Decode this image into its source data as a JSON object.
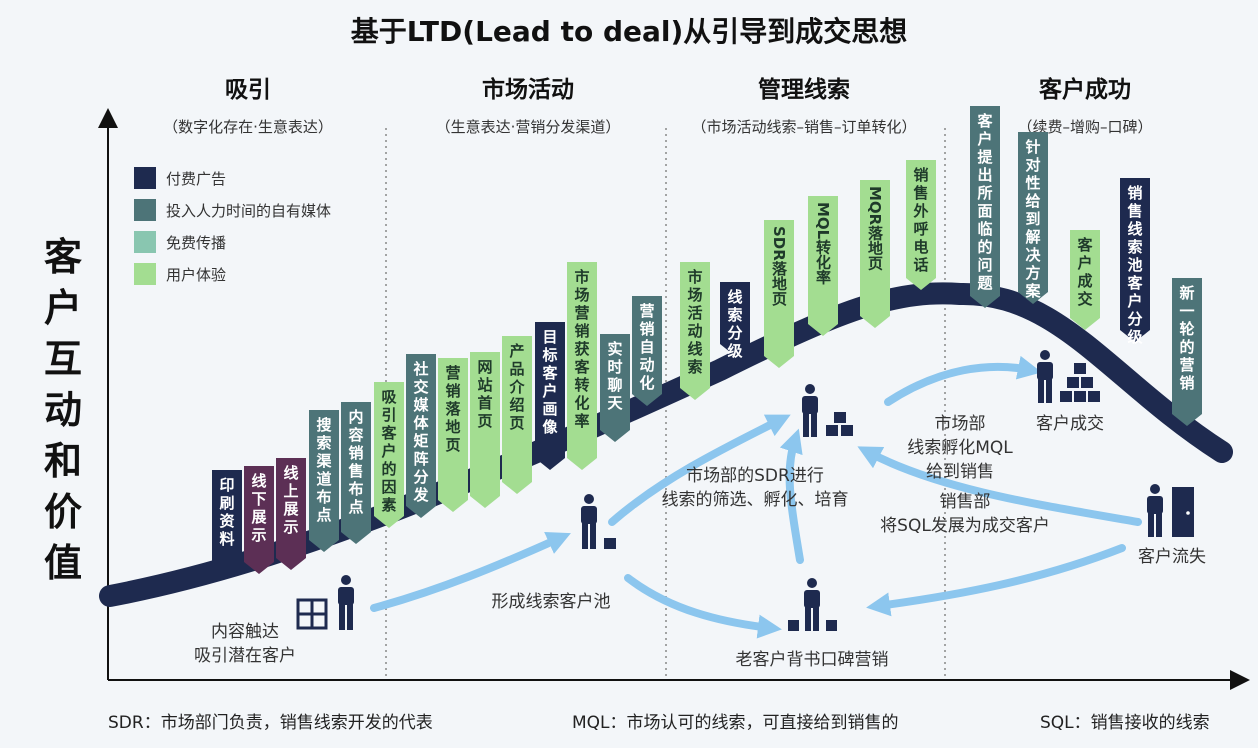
{
  "title": "基于LTD(Lead to deal)从引导到成交思想",
  "y_axis_label": "客户互动和价值",
  "stages": [
    {
      "name": "吸引",
      "sub": "（数字化存在·生意表达）"
    },
    {
      "name": "市场活动",
      "sub": "（生意表达·营销分发渠道）"
    },
    {
      "name": "管理线索",
      "sub": "（市场活动线索–销售–订单转化）"
    },
    {
      "name": "客户成功",
      "sub": "（续费–增购–口碑）"
    }
  ],
  "legend": [
    {
      "label": "付费广告",
      "color": "#1e2a4f"
    },
    {
      "label": "投入人力时间的自有媒体",
      "color": "#4d7478"
    },
    {
      "label": "免费传播",
      "color": "#89c6b0"
    },
    {
      "label": "用户体验",
      "color": "#a3dd91"
    }
  ],
  "tags": [
    {
      "text": "印刷资料",
      "category": "付费广告"
    },
    {
      "text": "线下展示",
      "category": "付费广告",
      "accent": "#5c2f55"
    },
    {
      "text": "线上展示",
      "category": "付费广告",
      "accent": "#5c2f55"
    },
    {
      "text": "搜索渠道布点",
      "category": "投入人力时间的自有媒体"
    },
    {
      "text": "内容销售布点",
      "category": "投入人力时间的自有媒体"
    },
    {
      "text": "吸引客户的因素",
      "category": "用户体验"
    },
    {
      "text": "社交媒体矩阵分发",
      "category": "投入人力时间的自有媒体"
    },
    {
      "text": "营销落地页",
      "category": "用户体验"
    },
    {
      "text": "网站首页",
      "category": "用户体验"
    },
    {
      "text": "产品介绍页",
      "category": "用户体验"
    },
    {
      "text": "目标客户画像",
      "category": "付费广告"
    },
    {
      "text": "市场营销获客转化率",
      "category": "用户体验"
    },
    {
      "text": "实时聊天",
      "category": "投入人力时间的自有媒体"
    },
    {
      "text": "营销自动化",
      "category": "投入人力时间的自有媒体"
    },
    {
      "text": "市场活动线索",
      "category": "用户体验"
    },
    {
      "text": "线索分级",
      "category": "付费广告"
    },
    {
      "text": "SDR落地页",
      "category": "用户体验",
      "rotated": true
    },
    {
      "text": "MQL转化率",
      "category": "用户体验",
      "rotated": true
    },
    {
      "text": "MQR落地页",
      "category": "用户体验",
      "rotated": true
    },
    {
      "text": "销售外呼电话",
      "category": "用户体验"
    },
    {
      "text": "客户提出所面临的问题",
      "category": "投入人力时间的自有媒体"
    },
    {
      "text": "针对性给到解决方案",
      "category": "投入人力时间的自有媒体"
    },
    {
      "text": "客户成交",
      "category": "用户体验"
    },
    {
      "text": "销售线索池客户分级",
      "category": "付费广告"
    },
    {
      "text": "新一轮的营销",
      "category": "投入人力时间的自有媒体"
    }
  ],
  "flow_labels": {
    "touch": "内容触达\n吸引潜在客户",
    "pool": "形成线索客户池",
    "sdr": "市场部的SDR进行\n线索的筛选、孵化、培育",
    "mql": "市场部\n线索孵化MQL\n给到销售",
    "deal": "客户成交",
    "sales": "销售部\n将SQL发展为成交客户",
    "churn": "客户流失",
    "referral": "老客户背书口碑营销"
  },
  "footnotes": [
    "SDR：市场部门负责，销售线索开发的代表",
    "MQL：市场认可的线索，可直接给到销售的",
    "SQL：销售接收的线索"
  ]
}
